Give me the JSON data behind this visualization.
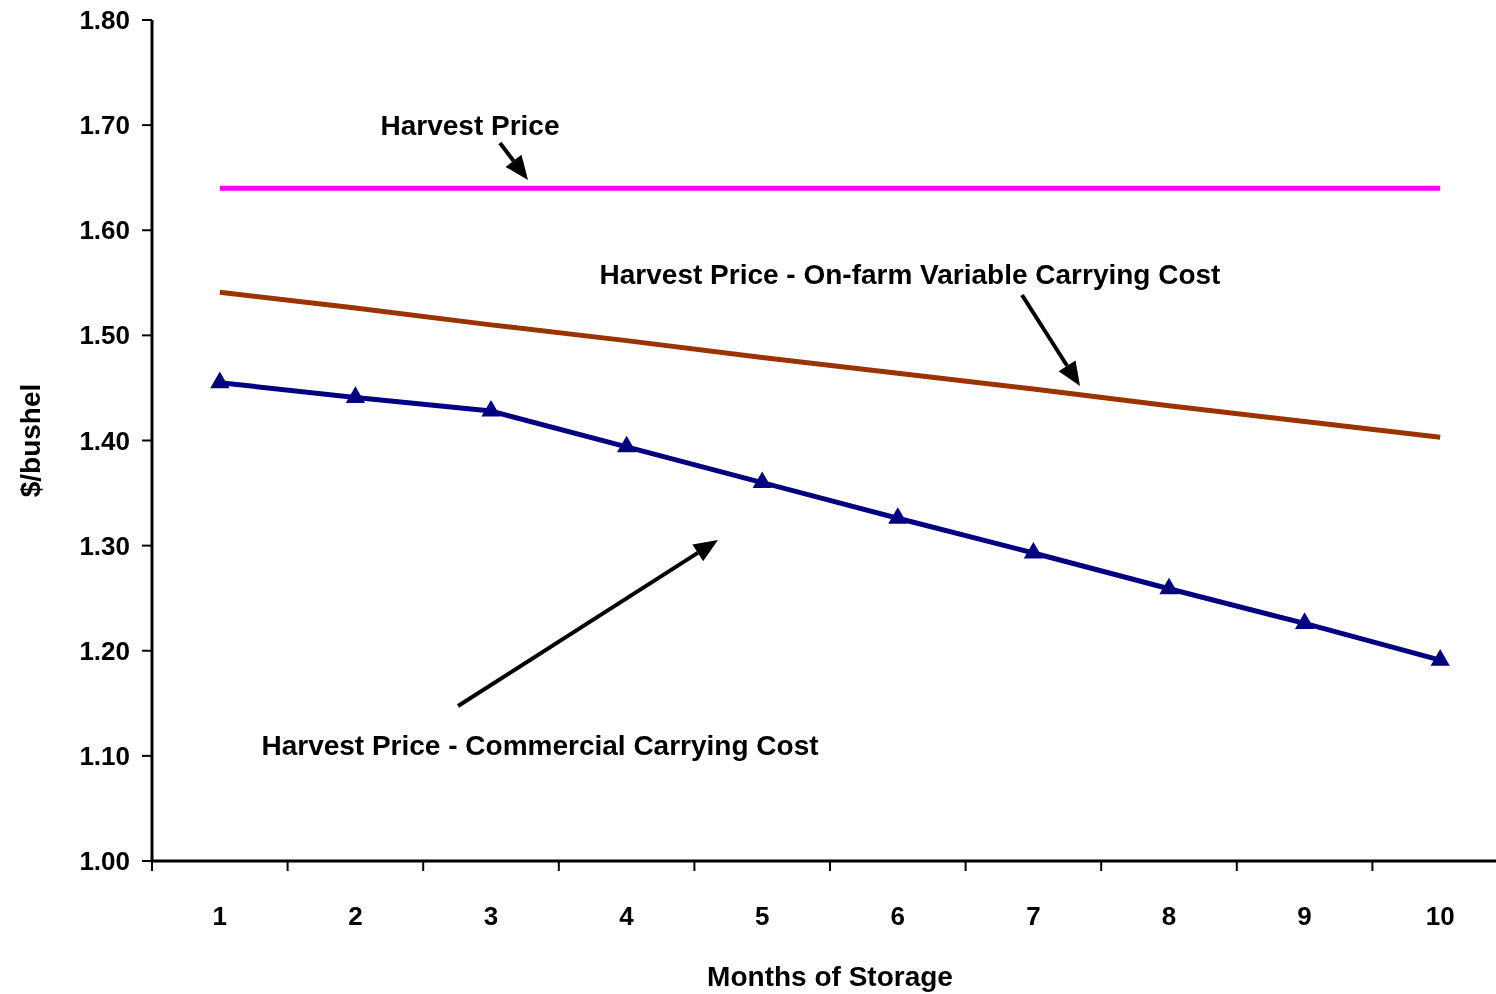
{
  "chart_data": {
    "type": "line",
    "xlabel": "Months of Storage",
    "ylabel": "$/bushel",
    "categories": [
      "1",
      "2",
      "3",
      "4",
      "5",
      "6",
      "7",
      "8",
      "9",
      "10"
    ],
    "series": [
      {
        "name": "Harvest Price",
        "color": "#ff00ff",
        "marker": "none",
        "values": [
          1.64,
          1.64,
          1.64,
          1.64,
          1.64,
          1.64,
          1.64,
          1.64,
          1.64,
          1.64
        ]
      },
      {
        "name": "Harvest Price - On-farm Variable Carrying Cost",
        "color": "#993300",
        "marker": "none",
        "values": [
          1.541,
          1.526,
          1.51,
          1.495,
          1.479,
          1.464,
          1.449,
          1.433,
          1.418,
          1.403
        ]
      },
      {
        "name": "Harvest Price - Commercial Carrying Cost",
        "color": "#000080",
        "marker": "triangle",
        "values": [
          1.455,
          1.441,
          1.428,
          1.394,
          1.36,
          1.326,
          1.293,
          1.259,
          1.226,
          1.191
        ]
      }
    ],
    "ylim": [
      1,
      1.8
    ],
    "yticks": [
      {
        "value": 1,
        "label": "1.00"
      },
      {
        "value": 1.1,
        "label": "1.10"
      },
      {
        "value": 1.2,
        "label": "1.20"
      },
      {
        "value": 1.3,
        "label": "1.30"
      },
      {
        "value": 1.4,
        "label": "1.40"
      },
      {
        "value": 1.5,
        "label": "1.50"
      },
      {
        "value": 1.6,
        "label": "1.60"
      },
      {
        "value": 1.7,
        "label": "1.70"
      },
      {
        "value": 1.8,
        "label": "1.80"
      }
    ],
    "grid": false
  }
}
